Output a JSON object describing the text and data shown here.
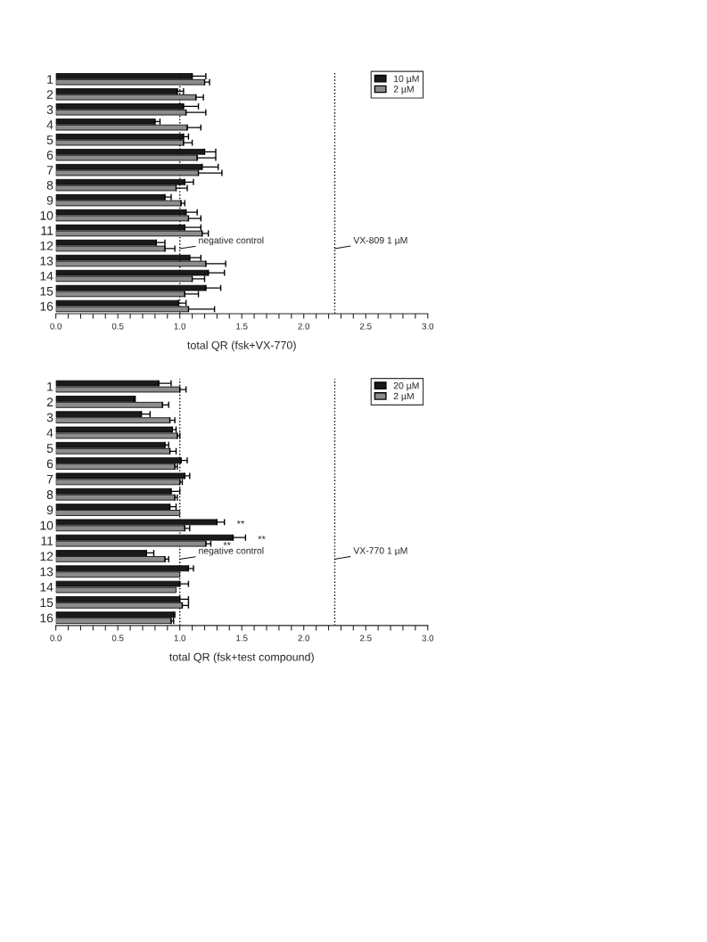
{
  "chart_data": [
    {
      "type": "bar",
      "orientation": "horizontal",
      "xlabel": "total QR (fsk+VX-770)",
      "categories": [
        "1",
        "2",
        "3",
        "4",
        "5",
        "6",
        "7",
        "8",
        "9",
        "10",
        "11",
        "12",
        "13",
        "14",
        "15",
        "16"
      ],
      "series": [
        {
          "name": "10 µM",
          "color": "#1a1a1a",
          "values": [
            1.1,
            0.98,
            1.03,
            0.8,
            1.03,
            1.2,
            1.18,
            1.04,
            0.88,
            1.05,
            1.04,
            0.81,
            1.08,
            1.23,
            1.21,
            0.99
          ],
          "errors": [
            [
              1.1,
              1.21
            ],
            [
              0.98,
              1.03
            ],
            [
              1.03,
              1.15
            ],
            [
              0.8,
              0.84
            ],
            [
              1.03,
              1.07
            ],
            [
              1.2,
              1.29
            ],
            [
              1.18,
              1.31
            ],
            [
              1.04,
              1.11
            ],
            [
              0.88,
              0.93
            ],
            [
              1.05,
              1.14
            ],
            [
              1.04,
              1.17
            ],
            [
              0.81,
              0.88
            ],
            [
              1.08,
              1.17
            ],
            [
              1.23,
              1.36
            ],
            [
              1.21,
              1.33
            ],
            [
              0.99,
              1.05
            ]
          ]
        },
        {
          "name": "2 µM",
          "color": "#8c8c8c",
          "values": [
            1.2,
            1.13,
            1.05,
            1.06,
            1.03,
            1.14,
            1.15,
            0.97,
            1.01,
            1.07,
            1.18,
            0.88,
            1.21,
            1.1,
            1.04,
            1.07
          ],
          "errors": [
            [
              1.2,
              1.24
            ],
            [
              1.13,
              1.19
            ],
            [
              1.05,
              1.21
            ],
            [
              1.06,
              1.17
            ],
            [
              1.03,
              1.1
            ],
            [
              1.14,
              1.29
            ],
            [
              1.15,
              1.34
            ],
            [
              0.97,
              1.06
            ],
            [
              1.01,
              1.04
            ],
            [
              1.07,
              1.17
            ],
            [
              1.18,
              1.23
            ],
            [
              0.88,
              0.96
            ],
            [
              1.21,
              1.37
            ],
            [
              1.1,
              1.2
            ],
            [
              1.04,
              1.15
            ],
            [
              1.07,
              1.28
            ]
          ]
        }
      ],
      "xlim": [
        0,
        3
      ],
      "xticks": [
        {
          "value": 0,
          "label": "0.0"
        },
        {
          "value": 0.1,
          "label": null
        },
        {
          "value": 0.2,
          "label": null
        },
        {
          "value": 0.3,
          "label": null
        },
        {
          "value": 0.4,
          "label": null
        },
        {
          "value": 0.5,
          "label": "0.5"
        },
        {
          "value": 0.6,
          "label": null
        },
        {
          "value": 0.7,
          "label": null
        },
        {
          "value": 0.8,
          "label": null
        },
        {
          "value": 0.9,
          "label": null
        },
        {
          "value": 1,
          "label": "1.0"
        },
        {
          "value": 1.1,
          "label": null
        },
        {
          "value": 1.2,
          "label": null
        },
        {
          "value": 1.3,
          "label": null
        },
        {
          "value": 1.4,
          "label": null
        },
        {
          "value": 1.5,
          "label": "1.5"
        },
        {
          "value": 1.6,
          "label": null
        },
        {
          "value": 1.7,
          "label": null
        },
        {
          "value": 1.8,
          "label": null
        },
        {
          "value": 1.9,
          "label": null
        },
        {
          "value": 2,
          "label": "2.0"
        },
        {
          "value": 2.1,
          "label": null
        },
        {
          "value": 2.2,
          "label": null
        },
        {
          "value": 2.3,
          "label": null
        },
        {
          "value": 2.4,
          "label": null
        },
        {
          "value": 2.5,
          "label": "2.5"
        },
        {
          "value": 2.6,
          "label": null
        },
        {
          "value": 2.7,
          "label": null
        },
        {
          "value": 2.8,
          "label": null
        },
        {
          "value": 2.9,
          "label": null
        },
        {
          "value": 3,
          "label": "3.0"
        }
      ],
      "ref_lines": [
        {
          "axis": "x",
          "value": 1.0,
          "label": "negative control",
          "line_style": "dotted",
          "color": "#000000"
        },
        {
          "axis": "x",
          "value": 2.25,
          "label": "VX-809 1 µM",
          "line_style": "dotted",
          "color": "#000000"
        }
      ],
      "legend": "top right",
      "grid": false
    },
    {
      "type": "bar",
      "orientation": "horizontal",
      "xlabel": "total QR (fsk+test compound)",
      "categories": [
        "1",
        "2",
        "3",
        "4",
        "5",
        "6",
        "7",
        "8",
        "9",
        "10",
        "11",
        "12",
        "13",
        "14",
        "15",
        "16"
      ],
      "series": [
        {
          "name": "20 µM",
          "color": "#1a1a1a",
          "values": [
            0.83,
            0.63,
            0.69,
            0.94,
            0.88,
            1.01,
            1.04,
            0.93,
            0.92,
            1.3,
            1.43,
            0.73,
            1.07,
            1.0,
            1.0,
            0.95
          ],
          "errors": [
            [
              0.83,
              0.93
            ],
            [
              0.63,
              0.64
            ],
            [
              0.69,
              0.76
            ],
            [
              0.94,
              0.97
            ],
            [
              0.88,
              0.91
            ],
            [
              1.01,
              1.06
            ],
            [
              1.04,
              1.08
            ],
            [
              0.93,
              1.0
            ],
            [
              0.92,
              0.97
            ],
            [
              1.3,
              1.36
            ],
            [
              1.43,
              1.53
            ],
            [
              0.73,
              0.79
            ],
            [
              1.07,
              1.11
            ],
            [
              1.0,
              1.07
            ],
            [
              1.0,
              1.07
            ],
            [
              0.95,
              0.96
            ]
          ]
        },
        {
          "name": "2 µM",
          "color": "#8c8c8c",
          "values": [
            1.0,
            0.86,
            0.92,
            0.98,
            0.92,
            0.96,
            1.0,
            0.96,
            1.0,
            1.04,
            1.21,
            0.88,
            1.0,
            0.97,
            1.02,
            0.93
          ],
          "errors": [
            [
              1.0,
              1.05
            ],
            [
              0.86,
              0.91
            ],
            [
              0.92,
              0.96
            ],
            [
              0.98,
              1.0
            ],
            [
              0.92,
              0.97
            ],
            [
              0.96,
              0.98
            ],
            [
              1.0,
              1.02
            ],
            [
              0.96,
              0.98
            ],
            null,
            [
              1.04,
              1.08
            ],
            [
              1.21,
              1.25
            ],
            [
              0.88,
              0.91
            ],
            null,
            null,
            [
              1.02,
              1.07
            ],
            [
              0.93,
              0.95
            ]
          ]
        }
      ],
      "xlim": [
        0,
        3
      ],
      "xticks": [
        {
          "value": 0,
          "label": "0.0"
        },
        {
          "value": 0.1,
          "label": null
        },
        {
          "value": 0.2,
          "label": null
        },
        {
          "value": 0.3,
          "label": null
        },
        {
          "value": 0.4,
          "label": null
        },
        {
          "value": 0.5,
          "label": "0.5"
        },
        {
          "value": 0.6,
          "label": null
        },
        {
          "value": 0.7,
          "label": null
        },
        {
          "value": 0.8,
          "label": null
        },
        {
          "value": 0.9,
          "label": null
        },
        {
          "value": 1,
          "label": "1.0"
        },
        {
          "value": 1.1,
          "label": null
        },
        {
          "value": 1.2,
          "label": null
        },
        {
          "value": 1.3,
          "label": null
        },
        {
          "value": 1.4,
          "label": null
        },
        {
          "value": 1.5,
          "label": "1.5"
        },
        {
          "value": 1.6,
          "label": null
        },
        {
          "value": 1.7,
          "label": null
        },
        {
          "value": 1.8,
          "label": null
        },
        {
          "value": 1.9,
          "label": null
        },
        {
          "value": 2,
          "label": "2.0"
        },
        {
          "value": 2.1,
          "label": null
        },
        {
          "value": 2.2,
          "label": null
        },
        {
          "value": 2.3,
          "label": null
        },
        {
          "value": 2.4,
          "label": null
        },
        {
          "value": 2.5,
          "label": "2.5"
        },
        {
          "value": 2.6,
          "label": null
        },
        {
          "value": 2.7,
          "label": null
        },
        {
          "value": 2.8,
          "label": null
        },
        {
          "value": 2.9,
          "label": null
        },
        {
          "value": 3,
          "label": "3.0"
        }
      ],
      "ref_lines": [
        {
          "axis": "x",
          "value": 1.0,
          "label": "negative control",
          "line_style": "dotted",
          "color": "#000000"
        },
        {
          "axis": "x",
          "value": 2.25,
          "label": "VX-770 1 µM",
          "line_style": "dotted",
          "color": "#000000"
        }
      ],
      "annotations": [
        {
          "text": "**",
          "x": 1.3,
          "y": "10"
        },
        {
          "text": "**",
          "x": 1.43,
          "y": "11"
        },
        {
          "text": "**",
          "x": 1.21,
          "y": "11"
        }
      ],
      "legend": "top right",
      "grid": false
    }
  ]
}
